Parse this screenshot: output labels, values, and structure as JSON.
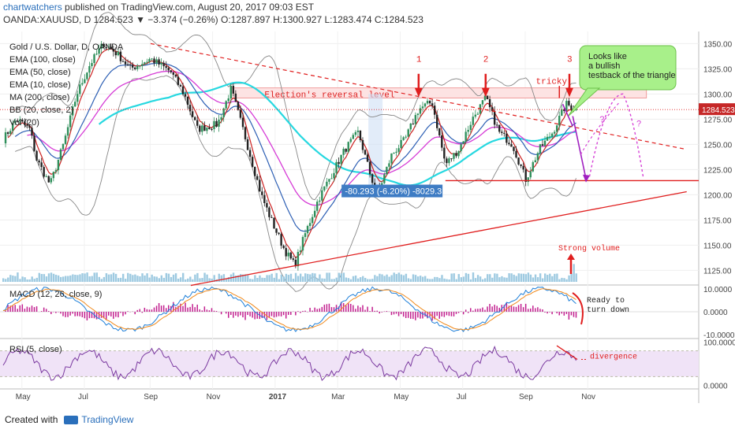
{
  "header": {
    "author": "chartwatchers",
    "published": "published on TradingView.com, August 20, 2017 09:03 EST",
    "symbol_line": "OANDA:XAUUSD, D  1284.523 ▼ −3.374 (−0.26%) O:1287.897 H:1300.927 L:1283.474 C:1284.523"
  },
  "legend": {
    "title": "Gold / U.S. Dollar, D, OANDA",
    "ema100": "EMA (100, close)",
    "ema50": "EMA (50, close)",
    "ema10": "EMA (10, close)",
    "ma200": "MA (200, close)",
    "bb": "BB (20, close, 2)",
    "vol": "Vol (20)"
  },
  "annotations": {
    "election": "Election's reversal level",
    "measure": "-80.293 (-6.20%) -8029.3",
    "peak1": "1",
    "peak2": "2",
    "peak3": "3",
    "tricky": "tricky",
    "callout": [
      "Looks like",
      "a bullish",
      "testback of the triangle"
    ],
    "q": "?",
    "strong_volume": "Strong volume",
    "ready": [
      "Ready to",
      "turn down"
    ],
    "divergence": "divergence"
  },
  "macd_label": "MACD (12, 26, close, 9)",
  "rsi_label": "RSI (5, close)",
  "footer": {
    "created": "Created with",
    "brand": "TradingView"
  },
  "colors": {
    "up": "#2f8f5b",
    "down": "#222222",
    "ema100": "#d63cd6",
    "ema50": "#2d5fb4",
    "ema10": "#cc2222",
    "ma200": "#27d8e0",
    "bb": "#888888",
    "annot": "#e01e1e",
    "macd": "#1e7fd8",
    "signal": "#f08a1d",
    "hist": "#c21f8f",
    "rsi": "#7b3aa0"
  },
  "chart_data": {
    "type": "candlestick",
    "instrument": "OANDA:XAUUSD",
    "timeframe": "D",
    "last_price": 1284.523,
    "x_ticks": [
      "May",
      "Jul",
      "Sep",
      "Nov",
      "2017",
      "Mar",
      "May",
      "Jul",
      "Sep",
      "Nov"
    ],
    "y_ticks": [
      1125.0,
      1150.0,
      1175.0,
      1200.0,
      1225.0,
      1250.0,
      1275.0,
      1300.0,
      1325.0,
      1350.0
    ],
    "ylim": [
      1112,
      1362
    ],
    "price_path": [
      {
        "x": 0,
        "y": 1255
      },
      {
        "x": 0.02,
        "y": 1275
      },
      {
        "x": 0.04,
        "y": 1265
      },
      {
        "x": 0.05,
        "y": 1235
      },
      {
        "x": 0.07,
        "y": 1210
      },
      {
        "x": 0.09,
        "y": 1250
      },
      {
        "x": 0.11,
        "y": 1300
      },
      {
        "x": 0.13,
        "y": 1330
      },
      {
        "x": 0.15,
        "y": 1350
      },
      {
        "x": 0.17,
        "y": 1340
      },
      {
        "x": 0.19,
        "y": 1325
      },
      {
        "x": 0.22,
        "y": 1335
      },
      {
        "x": 0.25,
        "y": 1322
      },
      {
        "x": 0.27,
        "y": 1300
      },
      {
        "x": 0.29,
        "y": 1265
      },
      {
        "x": 0.32,
        "y": 1270
      },
      {
        "x": 0.34,
        "y": 1305
      },
      {
        "x": 0.36,
        "y": 1260
      },
      {
        "x": 0.385,
        "y": 1200
      },
      {
        "x": 0.4,
        "y": 1175
      },
      {
        "x": 0.42,
        "y": 1145
      },
      {
        "x": 0.435,
        "y": 1130
      },
      {
        "x": 0.45,
        "y": 1160
      },
      {
        "x": 0.47,
        "y": 1195
      },
      {
        "x": 0.49,
        "y": 1220
      },
      {
        "x": 0.51,
        "y": 1245
      },
      {
        "x": 0.53,
        "y": 1262
      },
      {
        "x": 0.55,
        "y": 1215
      },
      {
        "x": 0.56,
        "y": 1203
      },
      {
        "x": 0.58,
        "y": 1240
      },
      {
        "x": 0.6,
        "y": 1255
      },
      {
        "x": 0.62,
        "y": 1285
      },
      {
        "x": 0.64,
        "y": 1292
      },
      {
        "x": 0.66,
        "y": 1230
      },
      {
        "x": 0.68,
        "y": 1245
      },
      {
        "x": 0.7,
        "y": 1275
      },
      {
        "x": 0.72,
        "y": 1296
      },
      {
        "x": 0.74,
        "y": 1262
      },
      {
        "x": 0.76,
        "y": 1250
      },
      {
        "x": 0.78,
        "y": 1215
      },
      {
        "x": 0.8,
        "y": 1245
      },
      {
        "x": 0.82,
        "y": 1262
      },
      {
        "x": 0.84,
        "y": 1290
      },
      {
        "x": 0.855,
        "y": 1285
      }
    ],
    "levels": {
      "election_band": [
        1296,
        1306
      ],
      "support": 1214,
      "target_arrow_to": 1215,
      "resistance_dotted": 1292
    },
    "macd": {
      "ylim": [
        -11,
        11
      ],
      "ticks": [
        10.0,
        0.0,
        -10.0
      ]
    },
    "rsi": {
      "ylim": [
        -5,
        105
      ],
      "ticks": [
        100.0,
        0.0
      ]
    }
  }
}
